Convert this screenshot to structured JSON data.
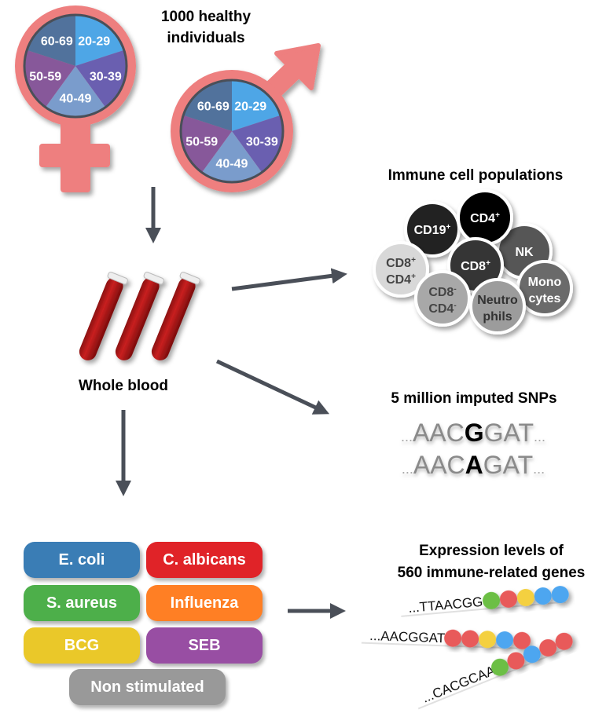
{
  "title": {
    "line1": "1000 healthy",
    "line2": "individuals"
  },
  "age_groups": [
    "20-29",
    "30-39",
    "40-49",
    "50-59",
    "60-69"
  ],
  "age_colors": [
    "#4ea6e6",
    "#6a5fb0",
    "#7a9ccc",
    "#87589a",
    "#51729c"
  ],
  "symbol_color": "#ee7f7f",
  "whole_blood": "Whole blood",
  "immune": {
    "title": "Immune cell populations",
    "cells": [
      {
        "label1": "CD19",
        "sup1": "+",
        "label2": "",
        "sup2": "",
        "color": "#222222",
        "text": "#ffffff"
      },
      {
        "label1": "CD4",
        "sup1": "+",
        "label2": "",
        "sup2": "",
        "color": "#000000",
        "text": "#ffffff"
      },
      {
        "label1": "NK",
        "sup1": "",
        "label2": "",
        "sup2": "",
        "color": "#575757",
        "text": "#ffffff"
      },
      {
        "label1": "CD8",
        "sup1": "+",
        "label2": "",
        "sup2": "",
        "color": "#353535",
        "text": "#ffffff"
      },
      {
        "label1": "CD8",
        "sup1": "+",
        "label2": "CD4",
        "sup2": "+",
        "color": "#d8d8d8",
        "text": "#444444"
      },
      {
        "label1": "CD8",
        "sup1": "-",
        "label2": "CD4",
        "sup2": "-",
        "color": "#a8a8a8",
        "text": "#444444"
      },
      {
        "label1": "Neutro",
        "sup1": "",
        "label2": "phils",
        "sup2": "",
        "color": "#9c9c9c",
        "text": "#333333"
      },
      {
        "label1": "Mono",
        "sup1": "",
        "label2": "cytes",
        "sup2": "",
        "color": "#6a6a6a",
        "text": "#ffffff"
      }
    ]
  },
  "snps": {
    "title": "5 million imputed SNPs",
    "seq1": {
      "pre": "AAC",
      "snp": "G",
      "post": "GAT"
    },
    "seq2": {
      "pre": "AAC",
      "snp": "A",
      "post": "GAT"
    },
    "dots": "..."
  },
  "stimuli": [
    {
      "label": "E. coli",
      "color": "#3a7db5"
    },
    {
      "label": "C. albicans",
      "color": "#e02328"
    },
    {
      "label": "S. aureus",
      "color": "#4daf4a"
    },
    {
      "label": "Influenza",
      "color": "#ff7f24"
    },
    {
      "label": "BCG",
      "color": "#eac829"
    },
    {
      "label": "SEB",
      "color": "#984ea3"
    },
    {
      "label": "Non stimulated",
      "color": "#999999"
    }
  ],
  "expression": {
    "title1": "Expression levels of",
    "title2": "560 immune-related genes",
    "rows": [
      {
        "seq": "...TTAACGG",
        "beads": [
          "#6cbf45",
          "#e85a5a",
          "#f4d03f",
          "#4ea6f0",
          "#4ea6f0"
        ]
      },
      {
        "seq": "...AACGGAT",
        "beads": [
          "#e85a5a",
          "#e85a5a",
          "#f4d03f",
          "#4ea6f0",
          "#e85a5a"
        ]
      },
      {
        "seq": "...CACGCAA",
        "beads": [
          "#6cbf45",
          "#e85a5a",
          "#4ea6f0",
          "#e85a5a",
          "#e85a5a"
        ]
      }
    ]
  }
}
